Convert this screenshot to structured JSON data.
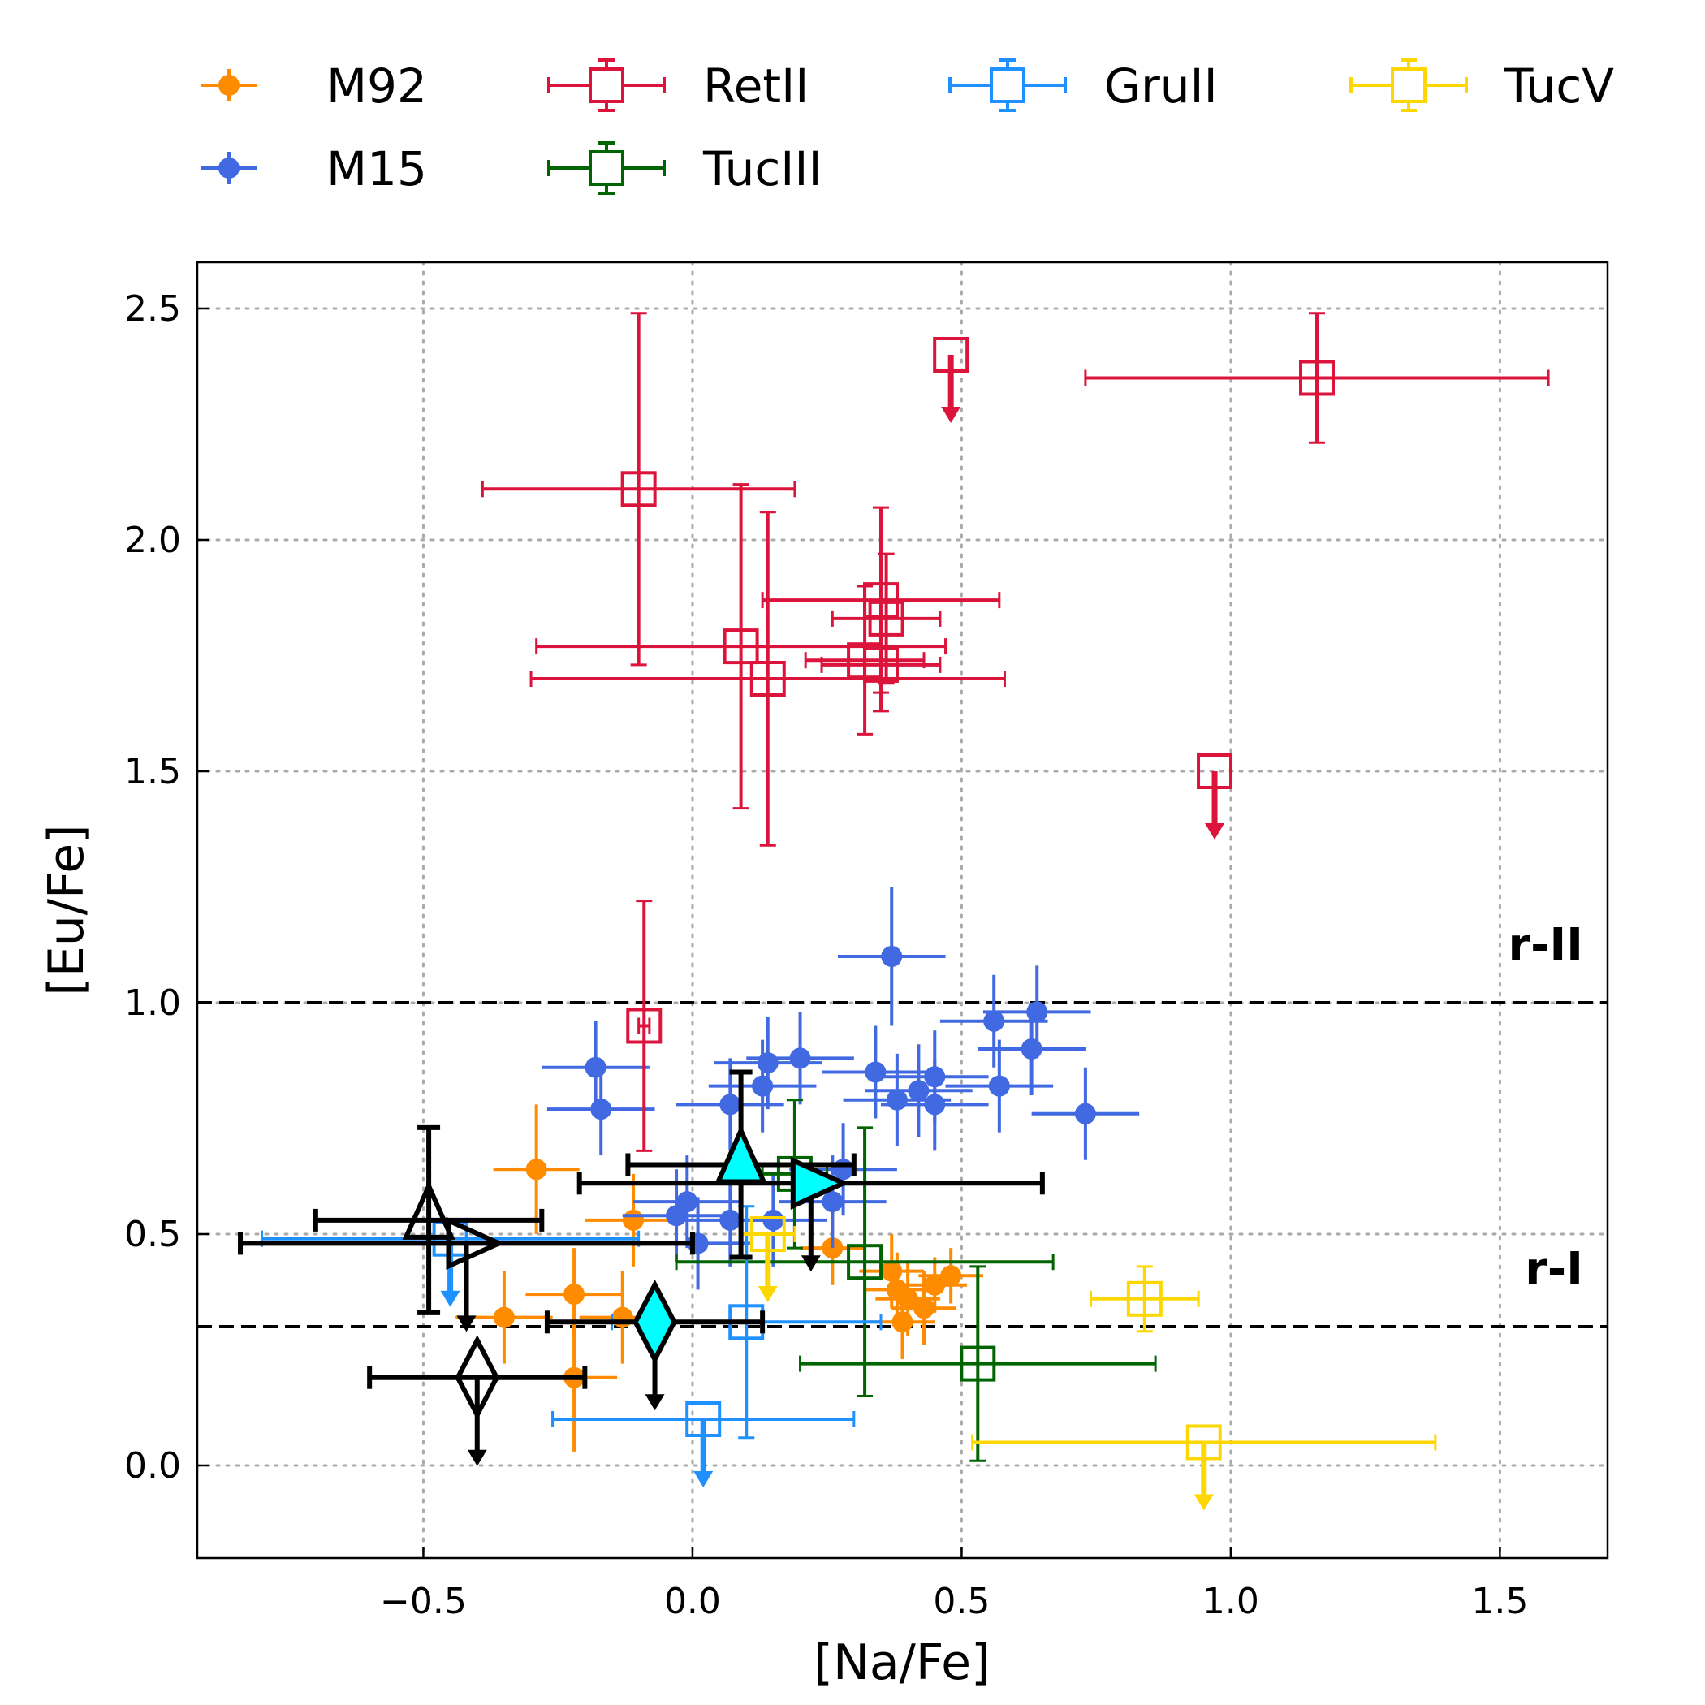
{
  "chart_data": {
    "type": "scatter",
    "xlabel": "[Na/Fe]",
    "ylabel": "[Eu/Fe]",
    "xlim": [
      -0.92,
      1.7
    ],
    "ylim": [
      -0.2,
      2.6
    ],
    "xticks": [
      -0.5,
      0.0,
      0.5,
      1.0,
      1.5
    ],
    "xtick_labels": [
      "−0.5",
      "0.0",
      "0.5",
      "1.0",
      "1.5"
    ],
    "yticks": [
      0.0,
      0.5,
      1.0,
      1.5,
      2.0,
      2.5
    ],
    "ytick_labels": [
      "0.0",
      "0.5",
      "1.0",
      "1.5",
      "2.0",
      "2.5"
    ],
    "grid": "dotted",
    "legend_position": "top, outside plot",
    "reference_lines": [
      {
        "y": 1.0,
        "label": "r-II",
        "style": "dashed"
      },
      {
        "y": 0.3,
        "label": "r-I",
        "style": "dashed"
      }
    ],
    "series": [
      {
        "name": "M92",
        "color": "#ff8c00",
        "marker": "filled-circle",
        "points": [
          {
            "x": -0.29,
            "y": 0.64,
            "xerr": 0.08,
            "yerr": 0.14
          },
          {
            "x": -0.11,
            "y": 0.53,
            "xerr": 0.09,
            "yerr": 0.1
          },
          {
            "x": -0.22,
            "y": 0.37,
            "xerr": 0.09,
            "yerr": 0.1
          },
          {
            "x": -0.35,
            "y": 0.32,
            "xerr": 0.09,
            "yerr": 0.1
          },
          {
            "x": -0.13,
            "y": 0.32,
            "xerr": 0.08,
            "yerr": 0.1
          },
          {
            "x": -0.22,
            "y": 0.19,
            "xerr": 0.08,
            "yerr": 0.16
          },
          {
            "x": 0.26,
            "y": 0.47,
            "xerr": 0.06,
            "yerr": 0.08
          },
          {
            "x": 0.37,
            "y": 0.42,
            "xerr": 0.06,
            "yerr": 0.08
          },
          {
            "x": 0.38,
            "y": 0.38,
            "xerr": 0.06,
            "yerr": 0.08
          },
          {
            "x": 0.4,
            "y": 0.36,
            "xerr": 0.06,
            "yerr": 0.08
          },
          {
            "x": 0.43,
            "y": 0.34,
            "xerr": 0.06,
            "yerr": 0.08
          },
          {
            "x": 0.39,
            "y": 0.31,
            "xerr": 0.06,
            "yerr": 0.08
          },
          {
            "x": 0.48,
            "y": 0.41,
            "xerr": 0.06,
            "yerr": 0.06
          },
          {
            "x": 0.45,
            "y": 0.39,
            "xerr": 0.06,
            "yerr": 0.06
          }
        ]
      },
      {
        "name": "M15",
        "color": "#4169e1",
        "marker": "filled-circle",
        "points": [
          {
            "x": 0.37,
            "y": 1.1,
            "xerr": 0.1,
            "yerr": 0.15
          },
          {
            "x": 0.64,
            "y": 0.98,
            "xerr": 0.1,
            "yerr": 0.1
          },
          {
            "x": 0.56,
            "y": 0.96,
            "xerr": 0.1,
            "yerr": 0.1
          },
          {
            "x": 0.63,
            "y": 0.9,
            "xerr": 0.1,
            "yerr": 0.1
          },
          {
            "x": 0.2,
            "y": 0.88,
            "xerr": 0.1,
            "yerr": 0.1
          },
          {
            "x": 0.14,
            "y": 0.87,
            "xerr": 0.1,
            "yerr": 0.1
          },
          {
            "x": -0.18,
            "y": 0.86,
            "xerr": 0.1,
            "yerr": 0.1
          },
          {
            "x": 0.34,
            "y": 0.85,
            "xerr": 0.1,
            "yerr": 0.1
          },
          {
            "x": 0.45,
            "y": 0.84,
            "xerr": 0.1,
            "yerr": 0.1
          },
          {
            "x": 0.13,
            "y": 0.82,
            "xerr": 0.1,
            "yerr": 0.1
          },
          {
            "x": 0.57,
            "y": 0.82,
            "xerr": 0.1,
            "yerr": 0.1
          },
          {
            "x": 0.42,
            "y": 0.81,
            "xerr": 0.1,
            "yerr": 0.1
          },
          {
            "x": 0.38,
            "y": 0.79,
            "xerr": 0.1,
            "yerr": 0.1
          },
          {
            "x": 0.07,
            "y": 0.78,
            "xerr": 0.1,
            "yerr": 0.1
          },
          {
            "x": 0.45,
            "y": 0.78,
            "xerr": 0.1,
            "yerr": 0.1
          },
          {
            "x": -0.17,
            "y": 0.77,
            "xerr": 0.1,
            "yerr": 0.1
          },
          {
            "x": 0.73,
            "y": 0.76,
            "xerr": 0.1,
            "yerr": 0.1
          },
          {
            "x": 0.28,
            "y": 0.64,
            "xerr": 0.1,
            "yerr": 0.1
          },
          {
            "x": -0.01,
            "y": 0.57,
            "xerr": 0.1,
            "yerr": 0.1
          },
          {
            "x": 0.26,
            "y": 0.57,
            "xerr": 0.1,
            "yerr": 0.1
          },
          {
            "x": -0.03,
            "y": 0.54,
            "xerr": 0.1,
            "yerr": 0.1
          },
          {
            "x": 0.07,
            "y": 0.53,
            "xerr": 0.1,
            "yerr": 0.1
          },
          {
            "x": 0.15,
            "y": 0.53,
            "xerr": 0.1,
            "yerr": 0.1
          },
          {
            "x": 0.01,
            "y": 0.48,
            "xerr": 0.1,
            "yerr": 0.1
          }
        ]
      },
      {
        "name": "RetII",
        "color": "#dc143c",
        "marker": "open-square",
        "points": [
          {
            "x": 1.16,
            "y": 2.35,
            "xerr": 0.43,
            "yerr": 0.14
          },
          {
            "x": 0.48,
            "y": 2.4,
            "upper_limit": true
          },
          {
            "x": -0.1,
            "y": 2.11,
            "xerr": 0.29,
            "yerr": 0.38
          },
          {
            "x": 0.35,
            "y": 1.87,
            "xerr": 0.22,
            "yerr": 0.2
          },
          {
            "x": 0.36,
            "y": 1.83,
            "xerr": 0.1,
            "yerr": 0.14
          },
          {
            "x": 0.09,
            "y": 1.77,
            "xerr": 0.38,
            "yerr": 0.35
          },
          {
            "x": 0.32,
            "y": 1.74,
            "xerr": 0.11,
            "yerr": 0.16
          },
          {
            "x": 0.35,
            "y": 1.73,
            "xerr": 0.11,
            "yerr": 0.1
          },
          {
            "x": 0.14,
            "y": 1.7,
            "xerr": 0.44,
            "yerr": 0.36
          },
          {
            "x": 0.97,
            "y": 1.5,
            "upper_limit": true
          },
          {
            "x": -0.09,
            "y": 0.95,
            "xerr": 0.01,
            "yerr": 0.27
          }
        ]
      },
      {
        "name": "TucIII",
        "color": "#006400",
        "marker": "open-square",
        "points": [
          {
            "x": 0.32,
            "y": 0.44,
            "xerr": 0.35,
            "yerr": 0.29
          },
          {
            "x": 0.53,
            "y": 0.22,
            "xerr": 0.33,
            "yerr": 0.21
          },
          {
            "x": 0.19,
            "y": 0.63,
            "xerr": 0.06,
            "yerr": 0.16
          }
        ]
      },
      {
        "name": "GruII",
        "color": "#1e90ff",
        "marker": "open-square",
        "points": [
          {
            "x": 0.1,
            "y": 0.31,
            "xerr": 0.25,
            "yerr": 0.25
          },
          {
            "x": 0.02,
            "y": 0.1,
            "xerr": 0.28,
            "upper_limit": true
          },
          {
            "x": -0.45,
            "y": 0.49,
            "xerr": 0.35,
            "upper_limit": true
          }
        ]
      },
      {
        "name": "TucV",
        "color": "#ffd700",
        "marker": "open-square",
        "points": [
          {
            "x": 0.84,
            "y": 0.36,
            "xerr": 0.1,
            "yerr": 0.07
          },
          {
            "x": 0.95,
            "y": 0.05,
            "xerr": 0.43,
            "upper_limit": true
          },
          {
            "x": 0.14,
            "y": 0.5,
            "xerr": 0.05,
            "upper_limit": true
          }
        ]
      }
    ],
    "highlight_points": [
      {
        "label": "filled cyan triangle",
        "marker": "triangle-up",
        "fill": "#00ffff",
        "x": 0.09,
        "y": 0.65,
        "xerr": 0.21,
        "yerr": 0.2
      },
      {
        "label": "filled cyan right triangle",
        "marker": "triangle-right",
        "fill": "#00ffff",
        "x": 0.22,
        "y": 0.61,
        "xerr": 0.43,
        "upper_limit": true
      },
      {
        "label": "filled cyan diamond",
        "marker": "diamond",
        "fill": "#00ffff",
        "x": -0.07,
        "y": 0.31,
        "xerr": 0.2,
        "upper_limit": true
      },
      {
        "label": "open triangle",
        "marker": "triangle-up",
        "fill": "none",
        "x": -0.49,
        "y": 0.53,
        "xerr": 0.21,
        "yerr": 0.2
      },
      {
        "label": "open right triangle",
        "marker": "triangle-right",
        "fill": "none",
        "x": -0.42,
        "y": 0.48,
        "xerr": 0.42,
        "upper_limit": true
      },
      {
        "label": "open diamond",
        "marker": "diamond",
        "fill": "none",
        "x": -0.4,
        "y": 0.19,
        "xerr": 0.2,
        "upper_limit": true
      }
    ]
  }
}
